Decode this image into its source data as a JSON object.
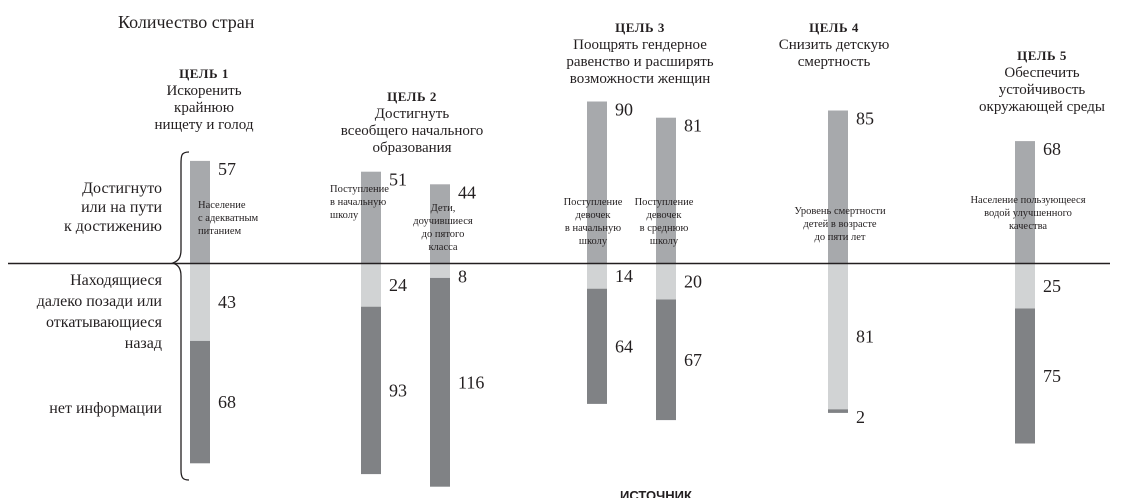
{
  "chart_data": {
    "type": "bar",
    "stacked": true,
    "ylabel": "Количество стран",
    "categories_labels": [
      "Достигнуто или на пути к достижению",
      "Находящиеся далеко позади или откатывающиеся назад",
      "нет информации"
    ],
    "colors": {
      "achieved": "#a7a9ac",
      "behind": "#d1d3d4",
      "no_data": "#808285",
      "axis": "#231f20"
    },
    "goals": [
      {
        "number": "ЦЕЛЬ 1",
        "title": "Искоренить крайнюю нищету и голод",
        "bars": [
          {
            "indicator": "Население с адекватным питанием",
            "achieved": 57,
            "behind": 43,
            "no_data": 68
          }
        ]
      },
      {
        "number": "ЦЕЛЬ 2",
        "title": "Достигнуть всеобщего начального образования",
        "bars": [
          {
            "indicator": "Поступление в начальную школу",
            "achieved": 51,
            "behind": 24,
            "no_data": 93
          },
          {
            "indicator": "Дети, доучившиеся до пятого класса",
            "achieved": 44,
            "behind": 8,
            "no_data": 116
          }
        ]
      },
      {
        "number": "ЦЕЛЬ 3",
        "title": "Поощрять гендерное равенство и расширять возможности женщин",
        "bars": [
          {
            "indicator": "Поступление девочек в начальную школу",
            "achieved": 90,
            "behind": 14,
            "no_data": 64
          },
          {
            "indicator": "Поступление девочек в среднюю школу",
            "achieved": 81,
            "behind": 20,
            "no_data": 67
          }
        ]
      },
      {
        "number": "ЦЕЛЬ 4",
        "title": "Снизить детскую смертность",
        "bars": [
          {
            "indicator": "Уровень смертности детей в возрасте до пяти лет",
            "achieved": 85,
            "behind": 81,
            "no_data": 2
          }
        ]
      },
      {
        "number": "ЦЕЛЬ 5",
        "title": "Обеспечить устойчивость окружающей среды",
        "bars": [
          {
            "indicator": "Население пользующееся водой улучшенного качества",
            "achieved": 68,
            "behind": 25,
            "no_data": 75
          }
        ]
      }
    ],
    "source_label": "ИСТОЧНИК"
  }
}
